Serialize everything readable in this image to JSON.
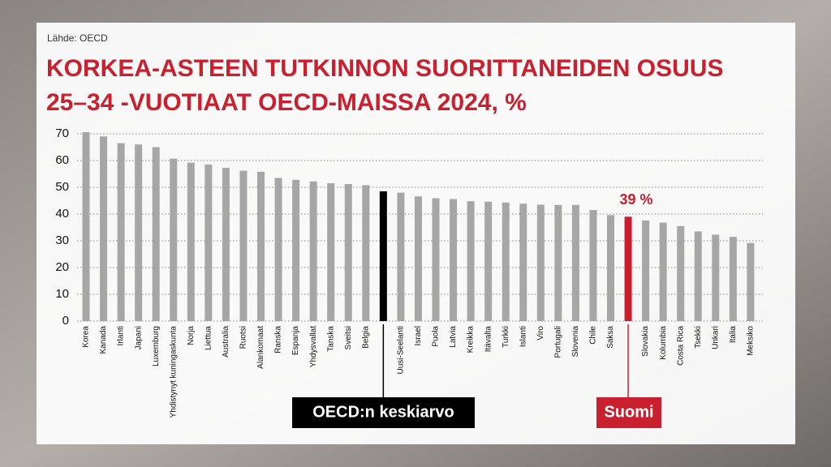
{
  "chart_data": {
    "type": "bar",
    "source": "Lähde: OECD",
    "title": [
      "KORKEA-ASTEEN TUTKINNON SUORITTANEIDEN OSUUS",
      "25–34 -VUOTIAAT OECD-MAISSA 2024, %"
    ],
    "categories": [
      "Korea",
      "Kanada",
      "Irlanti",
      "Japani",
      "Luxemburg",
      "Yhdistynyt kuningaskunta",
      "Norja",
      "Liettua",
      "Australia",
      "Ruotsi",
      "Alankomaat",
      "Ranska",
      "Espanja",
      "Yhdysvallat",
      "Tanska",
      "Sveitsi",
      "Belgia",
      null,
      "Uusi-Seelanti",
      "Israel",
      "Puola",
      "Latvia",
      "Kreikka",
      "Itävalta",
      "Turkki",
      "Islanti",
      "Viro",
      "Portugali",
      "Slovenia",
      "Chile",
      "Saksa",
      null,
      "Slovakia",
      "Kolumbia",
      "Costa Rica",
      "Tsekki",
      "Unkari",
      "Italia",
      "Meksiko"
    ],
    "values": [
      70.6,
      69,
      66.5,
      66,
      65,
      60.7,
      59.2,
      58.5,
      57.3,
      56.2,
      55.8,
      53.5,
      52.8,
      52.2,
      51.5,
      51.2,
      50.8,
      48.5,
      48,
      46.6,
      45.9,
      45.6,
      44.8,
      44.6,
      44.3,
      43.9,
      43.5,
      43.4,
      43.4,
      41.5,
      39.6,
      39,
      37.6,
      36.8,
      35.5,
      33.5,
      32.3,
      31.5,
      29.2
    ],
    "value_labels": [
      null,
      null,
      null,
      null,
      null,
      null,
      null,
      null,
      null,
      null,
      null,
      null,
      null,
      null,
      null,
      null,
      null,
      null,
      null,
      null,
      null,
      null,
      null,
      null,
      null,
      null,
      null,
      null,
      null,
      null,
      null,
      "39 %",
      null,
      null,
      null,
      null,
      null,
      null,
      null
    ],
    "colors": [
      "#a6a6a6",
      "#a6a6a6",
      "#a6a6a6",
      "#a6a6a6",
      "#a6a6a6",
      "#a6a6a6",
      "#a6a6a6",
      "#a6a6a6",
      "#a6a6a6",
      "#a6a6a6",
      "#a6a6a6",
      "#a6a6a6",
      "#a6a6a6",
      "#a6a6a6",
      "#a6a6a6",
      "#a6a6a6",
      "#a6a6a6",
      "#000000",
      "#a6a6a6",
      "#a6a6a6",
      "#a6a6a6",
      "#a6a6a6",
      "#a6a6a6",
      "#a6a6a6",
      "#a6a6a6",
      "#a6a6a6",
      "#a6a6a6",
      "#a6a6a6",
      "#a6a6a6",
      "#a6a6a6",
      "#a6a6a6",
      "#c8202f",
      "#a6a6a6",
      "#a6a6a6",
      "#a6a6a6",
      "#a6a6a6",
      "#a6a6a6",
      "#a6a6a6",
      "#a6a6a6"
    ],
    "annotations": [
      "OECD:n keskiarvo",
      "Suomi"
    ],
    "ylim": [
      0,
      70
    ],
    "yticks": [
      0,
      10,
      20,
      30,
      40,
      50,
      60,
      70
    ],
    "grid": true
  }
}
